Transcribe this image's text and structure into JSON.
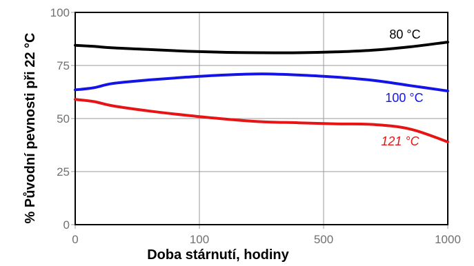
{
  "chart_data": {
    "type": "line",
    "xlabel": "Doba stárnutí, hodiny",
    "ylabel": "% Původní pevnosti při 22 °C",
    "x_tick_labels": [
      "0",
      "100",
      "500",
      "1000"
    ],
    "y_ticks": [
      0,
      25,
      50,
      75,
      100
    ],
    "ylim": [
      0,
      100
    ],
    "grid": true,
    "series": [
      {
        "name": "80 °C",
        "color": "#000000",
        "x": [
          0,
          50,
          100,
          200,
          300,
          400,
          500,
          600,
          700,
          800,
          900,
          1000
        ],
        "y": [
          84.5,
          84.0,
          83.3,
          82.5,
          81.7,
          81.2,
          81.0,
          81.0,
          81.4,
          82.2,
          83.8,
          86.0
        ]
      },
      {
        "name": "100 °C",
        "color": "#1414e6",
        "x": [
          0,
          50,
          100,
          200,
          300,
          400,
          500,
          600,
          700,
          800,
          900,
          1000
        ],
        "y": [
          63.5,
          64.5,
          66.5,
          68.2,
          69.5,
          70.5,
          71.0,
          70.5,
          69.5,
          68.0,
          65.5,
          63.0
        ]
      },
      {
        "name": "121 °C",
        "color": "#e61414",
        "x": [
          0,
          50,
          100,
          200,
          300,
          400,
          500,
          600,
          700,
          800,
          900,
          1000
        ],
        "y": [
          59.0,
          58.0,
          56.0,
          53.5,
          51.5,
          49.8,
          48.5,
          48.0,
          47.5,
          47.2,
          45.0,
          39.0
        ]
      }
    ]
  }
}
